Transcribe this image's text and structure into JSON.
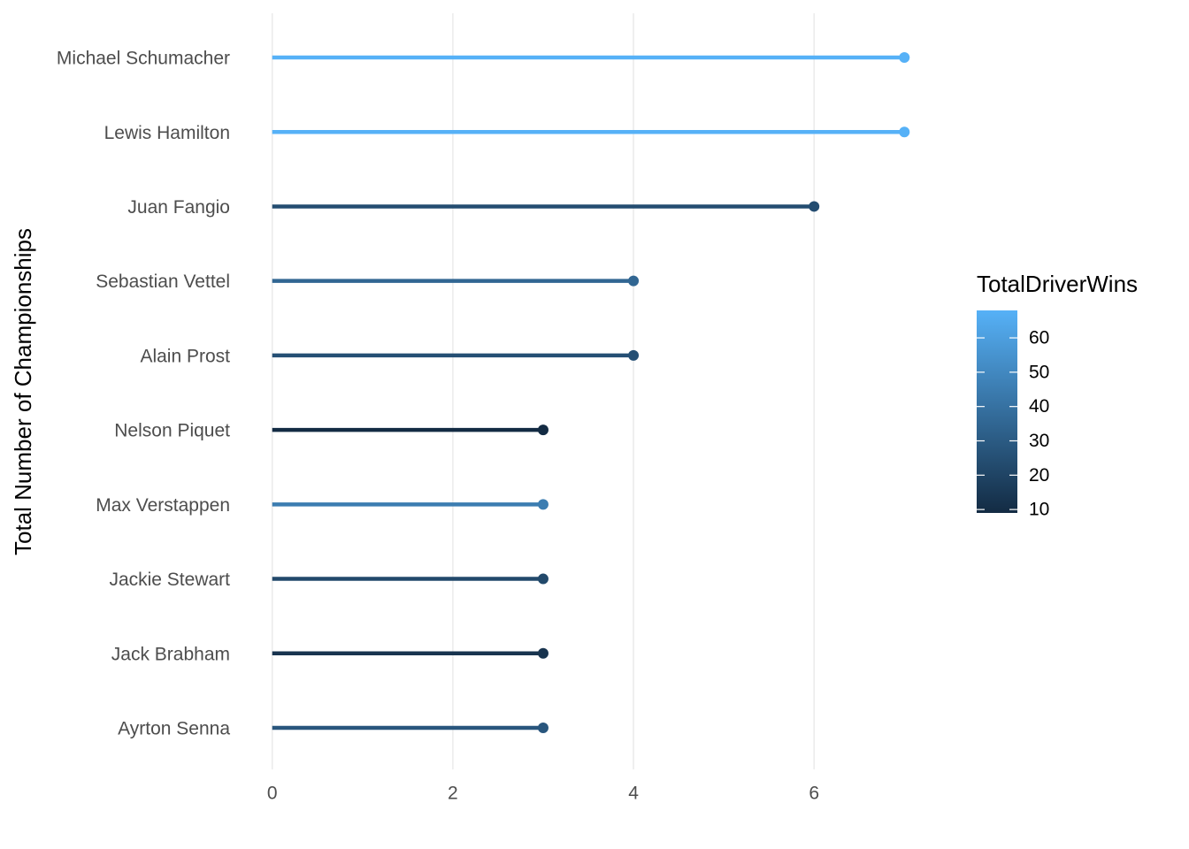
{
  "chart_data": {
    "type": "lollipop",
    "y_axis_label": "Total Number of Championships",
    "categories": [
      "Michael Schumacher",
      "Lewis Hamilton",
      "Juan Fangio",
      "Sebastian Vettel",
      "Alain Prost",
      "Nelson Piquet",
      "Max Verstappen",
      "Jackie Stewart",
      "Jack Brabham",
      "Ayrton Senna"
    ],
    "values": [
      7,
      7,
      6,
      4,
      4,
      3,
      3,
      3,
      3,
      3
    ],
    "color_values": [
      68,
      68,
      24,
      35,
      25,
      9,
      45,
      22,
      13,
      28
    ],
    "xlim": [
      -0.35,
      7.35
    ],
    "xticks": [
      0,
      2,
      4,
      6
    ],
    "grid": true,
    "legend": {
      "title": "TotalDriverWins",
      "lim": [
        9,
        68
      ],
      "ticks": [
        10,
        20,
        30,
        40,
        50,
        60
      ],
      "low_color": "#132B43",
      "high_color": "#56B1F7"
    }
  }
}
